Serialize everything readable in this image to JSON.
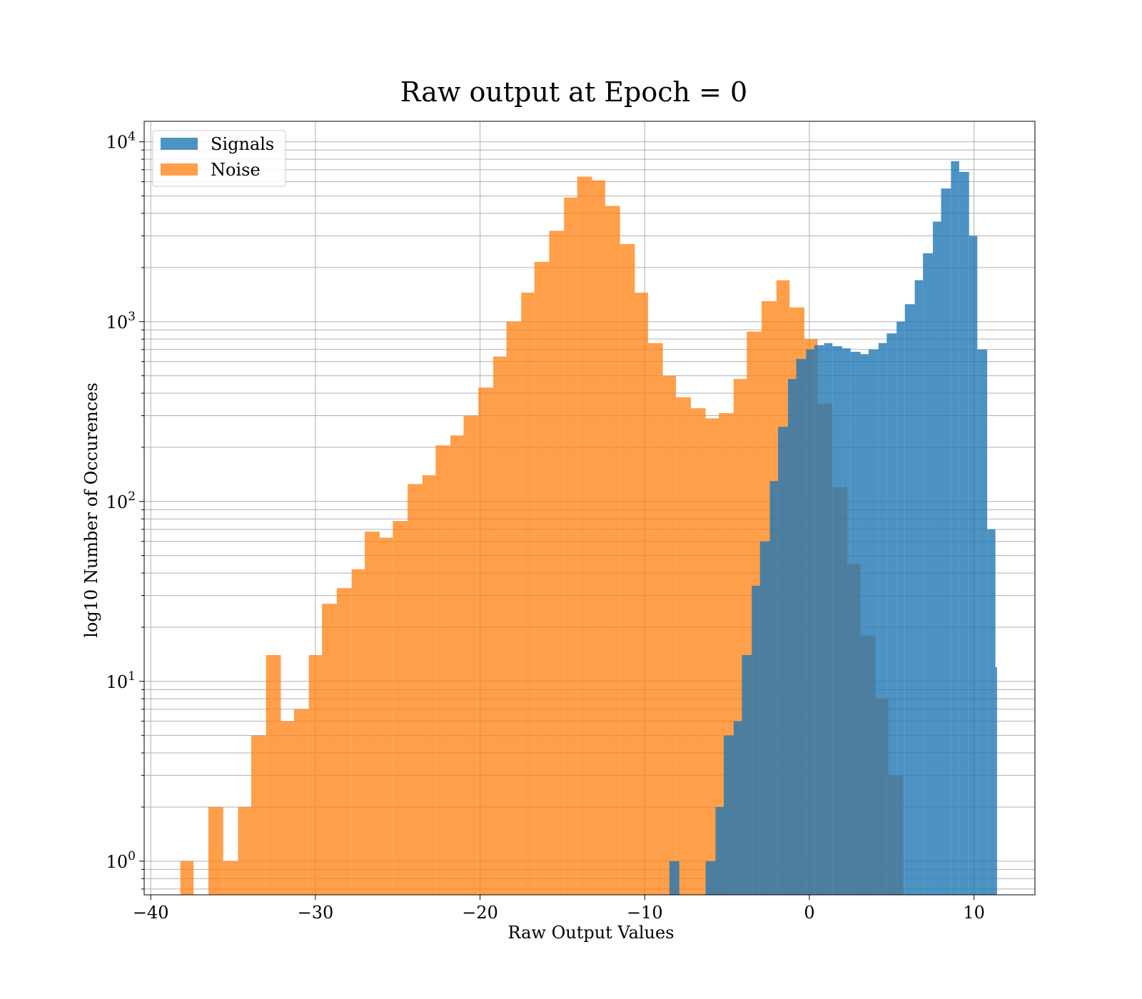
{
  "chart_data": {
    "type": "histogram",
    "title": "Raw output at Epoch = 0",
    "xlabel": "Raw Output Values",
    "ylabel": "log10 Number of Occurences",
    "xlim": [
      -40.4,
      13.7
    ],
    "ylim": [
      0.65,
      13000
    ],
    "yscale": "log",
    "grid": true,
    "legend_position": "top-left",
    "xticks": [
      {
        "value": -40,
        "label": "−40"
      },
      {
        "value": -30,
        "label": "−30"
      },
      {
        "value": -20,
        "label": "−20"
      },
      {
        "value": -10,
        "label": "−10"
      },
      {
        "value": 0,
        "label": "0"
      },
      {
        "value": 10,
        "label": "10"
      }
    ],
    "yticks": [
      {
        "value": 1,
        "base": "10",
        "exp": "0"
      },
      {
        "value": 10,
        "base": "10",
        "exp": "1"
      },
      {
        "value": 100,
        "base": "10",
        "exp": "2"
      },
      {
        "value": 1000,
        "base": "10",
        "exp": "3"
      },
      {
        "value": 10000,
        "base": "10",
        "exp": "4"
      }
    ],
    "series": [
      {
        "name": "Noise",
        "color": "#ff7f0e",
        "alpha": 0.75,
        "edges": [
          -38.2,
          -37.4,
          -36.5,
          -35.6,
          -34.7,
          -33.9,
          -33.0,
          -32.1,
          -31.3,
          -30.4,
          -29.6,
          -28.7,
          -27.8,
          -27.0,
          -26.1,
          -25.3,
          -24.4,
          -23.5,
          -22.7,
          -21.8,
          -21.0,
          -20.1,
          -19.2,
          -18.4,
          -17.5,
          -16.7,
          -15.8,
          -14.9,
          -14.1,
          -13.2,
          -12.4,
          -11.5,
          -10.6,
          -9.8,
          -8.9,
          -8.1,
          -7.2,
          -6.3,
          -5.5,
          -4.6,
          -3.8,
          -2.9,
          -2.0,
          -1.2,
          -0.3,
          0.5,
          1.4,
          2.3,
          3.1,
          4.0,
          4.8,
          5.7
        ],
        "counts": [
          1,
          0,
          2,
          1,
          2,
          5,
          14,
          6,
          7,
          14,
          27,
          33,
          42,
          68,
          63,
          78,
          125,
          140,
          205,
          233,
          300,
          430,
          640,
          1000,
          1450,
          2150,
          3200,
          4900,
          6400,
          6100,
          4400,
          2700,
          1450,
          760,
          500,
          380,
          330,
          290,
          310,
          480,
          880,
          1300,
          1700,
          1200,
          800,
          350,
          120,
          45,
          18,
          8,
          3
        ]
      },
      {
        "name": "Signals",
        "color": "#1f77b4",
        "alpha": 0.8,
        "edges": [
          -8.5,
          -7.9,
          -7.4,
          -6.8,
          -6.3,
          -5.7,
          -5.2,
          -4.6,
          -4.1,
          -3.5,
          -3.0,
          -2.4,
          -1.9,
          -1.3,
          -0.8,
          -0.2,
          0.3,
          0.9,
          1.4,
          2.0,
          2.5,
          3.1,
          3.6,
          4.2,
          4.7,
          5.3,
          5.8,
          6.4,
          6.9,
          7.5,
          8.0,
          8.6,
          9.1,
          9.7,
          10.2,
          10.8,
          11.3,
          11.4
        ],
        "counts": [
          1,
          0,
          0,
          0,
          1,
          2,
          5,
          6,
          14,
          34,
          60,
          130,
          260,
          480,
          620,
          700,
          740,
          760,
          730,
          710,
          680,
          660,
          700,
          760,
          860,
          1000,
          1250,
          1700,
          2400,
          3600,
          5500,
          7800,
          6800,
          3000,
          700,
          70,
          12
        ]
      }
    ]
  }
}
